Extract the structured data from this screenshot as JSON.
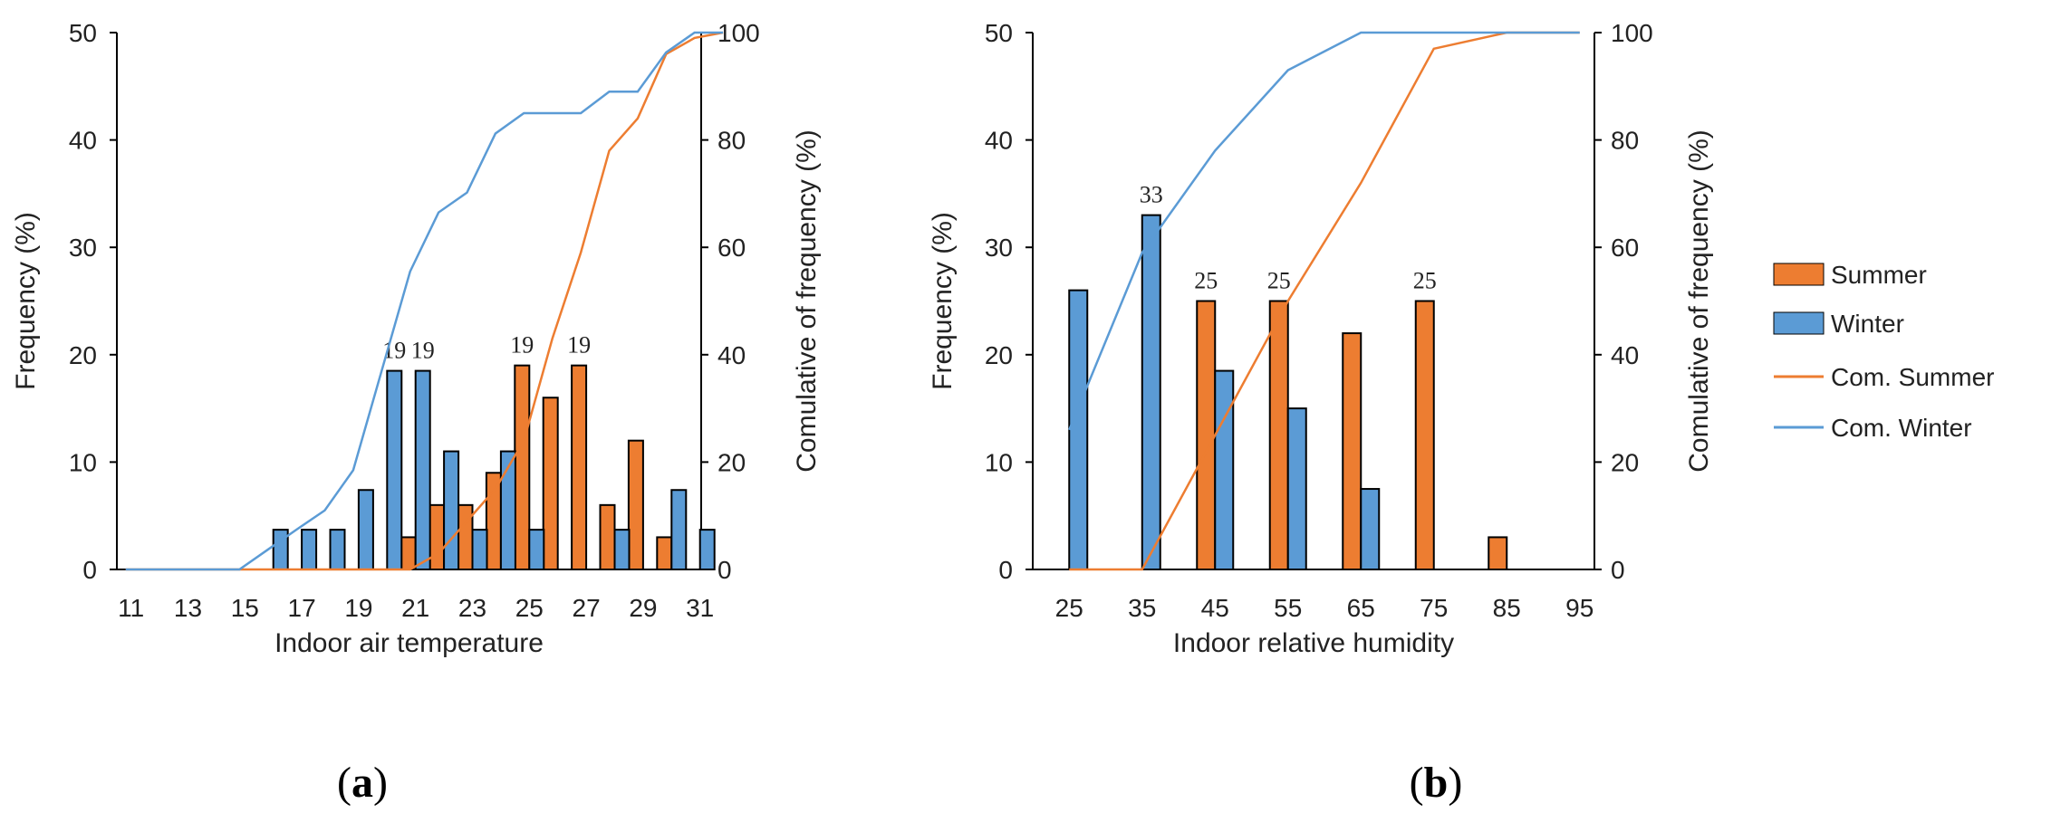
{
  "colors": {
    "summer": "#ED7D31",
    "winter": "#5B9BD5",
    "axis": "#000000"
  },
  "legend": {
    "summer": "Summer",
    "winter": "Winter",
    "cum_summer": "Com. Summer",
    "cum_winter": "Com. Winter"
  },
  "chart_data": [
    {
      "type": "bar",
      "panel_label": "a",
      "xlabel": "Indoor air temperature",
      "ylabel": "Frequency (%)",
      "y2label": "Comulative of frequency (%)",
      "ylim": [
        0,
        50
      ],
      "y2lim": [
        0,
        100
      ],
      "yticks": [
        0,
        10,
        20,
        30,
        40,
        50
      ],
      "y2ticks": [
        0,
        20,
        40,
        60,
        80,
        100
      ],
      "categories": [
        11,
        12,
        13,
        14,
        15,
        16,
        17,
        18,
        19,
        20,
        21,
        22,
        23,
        24,
        25,
        26,
        27,
        28,
        29,
        30,
        31,
        32
      ],
      "xtick_labels": [
        "11",
        "",
        "13",
        "",
        "15",
        "",
        "17",
        "",
        "19",
        "",
        "21",
        "",
        "23",
        "",
        "25",
        "",
        "27",
        "",
        "29",
        "",
        "31",
        ""
      ],
      "series": [
        {
          "name": "Summer",
          "kind": "bar",
          "values": [
            0,
            0,
            0,
            0,
            0,
            0,
            0,
            0,
            0,
            0,
            3,
            6,
            6,
            9,
            19,
            16,
            19,
            6,
            12,
            3,
            0,
            0
          ],
          "labels": [
            "",
            "",
            "",
            "",
            "",
            "",
            "",
            "",
            "",
            "",
            "",
            "",
            "",
            "",
            "19",
            "",
            "19",
            "",
            "",
            "",
            "",
            ""
          ]
        },
        {
          "name": "Winter",
          "kind": "bar",
          "values": [
            0,
            0,
            0,
            0,
            0,
            3.7,
            3.7,
            3.7,
            7.4,
            18.5,
            18.5,
            11,
            3.7,
            11,
            3.7,
            0,
            0,
            3.7,
            0,
            7.4,
            3.7,
            0
          ],
          "labels": [
            "",
            "",
            "",
            "",
            "",
            "",
            "",
            "",
            "",
            "19",
            "19",
            "",
            "",
            "",
            "",
            "",
            "",
            "",
            "",
            "",
            "",
            ""
          ]
        },
        {
          "name": "Com. Summer",
          "kind": "line",
          "axis": "y2",
          "values": [
            0,
            0,
            0,
            0,
            0,
            0,
            0,
            0,
            0,
            0,
            0,
            3,
            9,
            15,
            24,
            43,
            59,
            78,
            84,
            96,
            99,
            100
          ]
        },
        {
          "name": "Com. Winter",
          "kind": "line",
          "axis": "y2",
          "values": [
            0,
            0,
            0,
            0,
            0,
            3.7,
            7.4,
            11,
            18.5,
            37,
            55.5,
            66.5,
            70.2,
            81.2,
            85,
            85,
            85,
            89,
            89,
            96.3,
            100,
            100
          ]
        }
      ]
    },
    {
      "type": "bar",
      "panel_label": "b",
      "xlabel": "Indoor relative humidity",
      "ylabel": "Frequency (%)",
      "y2label": "Comulative of frequency (%)",
      "ylim": [
        0,
        50
      ],
      "y2lim": [
        0,
        100
      ],
      "yticks": [
        0,
        10,
        20,
        30,
        40,
        50
      ],
      "y2ticks": [
        0,
        20,
        40,
        60,
        80,
        100
      ],
      "categories": [
        25,
        35,
        45,
        55,
        65,
        75,
        85,
        95
      ],
      "xtick_labels": [
        "25",
        "35",
        "45",
        "55",
        "65",
        "75",
        "85",
        "95"
      ],
      "series": [
        {
          "name": "Summer",
          "kind": "bar",
          "values": [
            0,
            0,
            25,
            25,
            22,
            25,
            3,
            0
          ],
          "labels": [
            "",
            "",
            "25",
            "25",
            "",
            "25",
            "",
            ""
          ]
        },
        {
          "name": "Winter",
          "kind": "bar",
          "values": [
            26,
            33,
            18.5,
            15,
            7.5,
            0,
            0,
            0
          ],
          "labels": [
            "",
            "33",
            "",
            "",
            "",
            "",
            "",
            ""
          ]
        },
        {
          "name": "Com. Summer",
          "kind": "line",
          "axis": "y2",
          "values": [
            0,
            0,
            25,
            50,
            72,
            97,
            100,
            100
          ]
        },
        {
          "name": "Com. Winter",
          "kind": "line",
          "axis": "y2",
          "values": [
            26,
            59,
            78,
            93,
            100,
            100,
            100,
            100
          ]
        }
      ]
    }
  ]
}
